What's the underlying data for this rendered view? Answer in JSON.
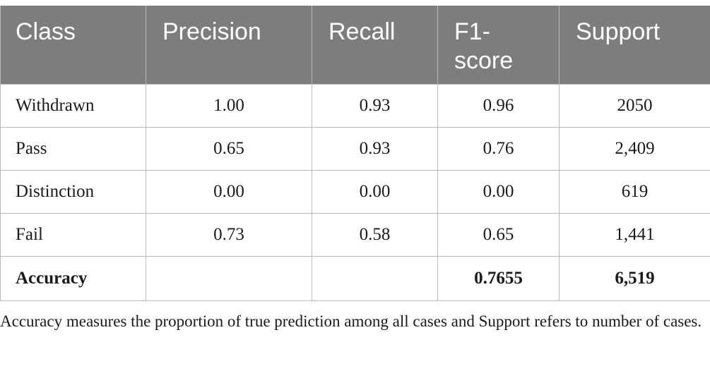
{
  "table": {
    "headers": [
      "Class",
      "Precision",
      "Recall",
      "F1-\nscore",
      "Support"
    ],
    "rows": [
      {
        "class": "Withdrawn",
        "precision": "1.00",
        "recall": "0.93",
        "f1": "0.96",
        "support": "2050"
      },
      {
        "class": "Pass",
        "precision": "0.65",
        "recall": "0.93",
        "f1": "0.76",
        "support": "2,409"
      },
      {
        "class": "Distinction",
        "precision": "0.00",
        "recall": "0.00",
        "f1": "0.00",
        "support": "619"
      },
      {
        "class": "Fail",
        "precision": "0.73",
        "recall": "0.58",
        "f1": "0.65",
        "support": "1,441"
      }
    ],
    "total": {
      "class": "Accuracy",
      "precision": "",
      "recall": "",
      "f1": "0.7655",
      "support": "6,519"
    }
  },
  "caption": "Accuracy measures the proportion of true prediction among all cases and Support refers to number of cases.",
  "colors": {
    "header_bg": "#7d7d7d",
    "header_text": "#ffffff",
    "grid": "#b8b8b8",
    "body_text": "#1a1a1a"
  }
}
